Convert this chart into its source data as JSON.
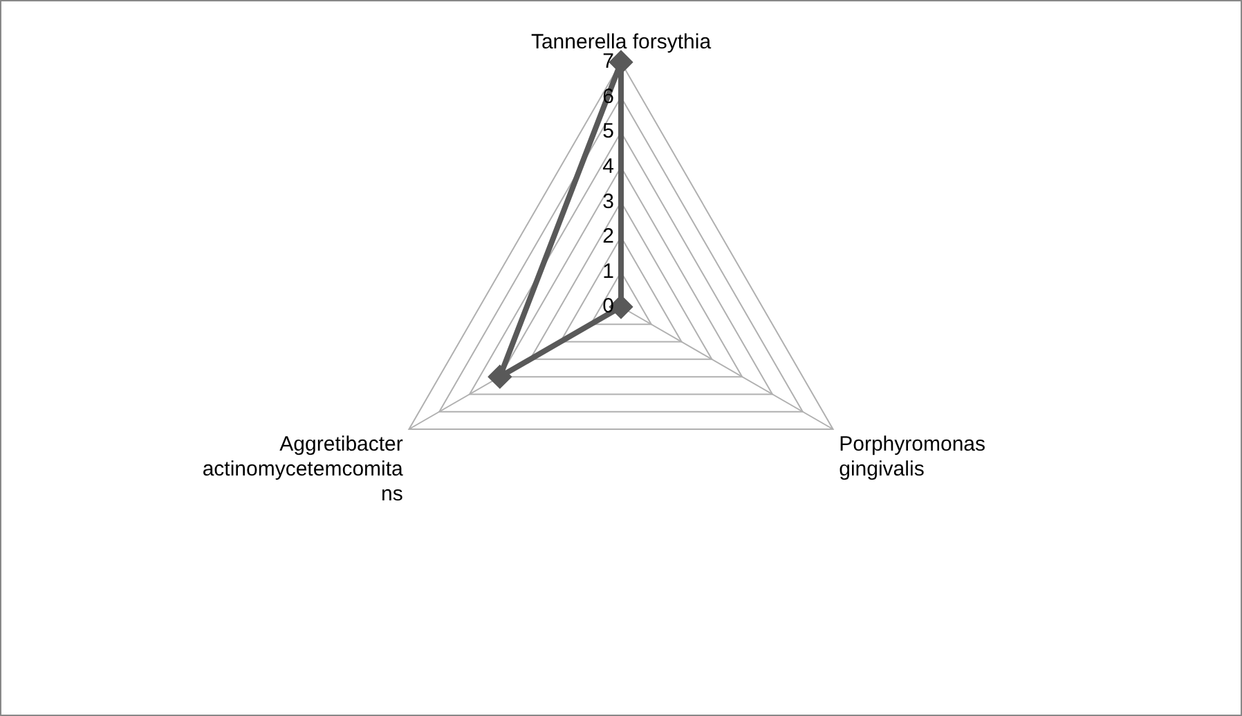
{
  "chart_data": {
    "type": "radar",
    "categories": [
      "Tannerella forsythia",
      "Porphyromonas gingivalis",
      "Aggretibacter actinomycetemcomitans"
    ],
    "series": [
      {
        "color": "#595959",
        "values": [
          7,
          0,
          4
        ]
      }
    ],
    "ylim": [
      0,
      7
    ],
    "yticks": [
      0,
      1,
      2,
      3,
      4,
      5,
      6,
      7
    ],
    "grid": true,
    "legend": false,
    "marker": "diamond",
    "line_style": "solid"
  }
}
